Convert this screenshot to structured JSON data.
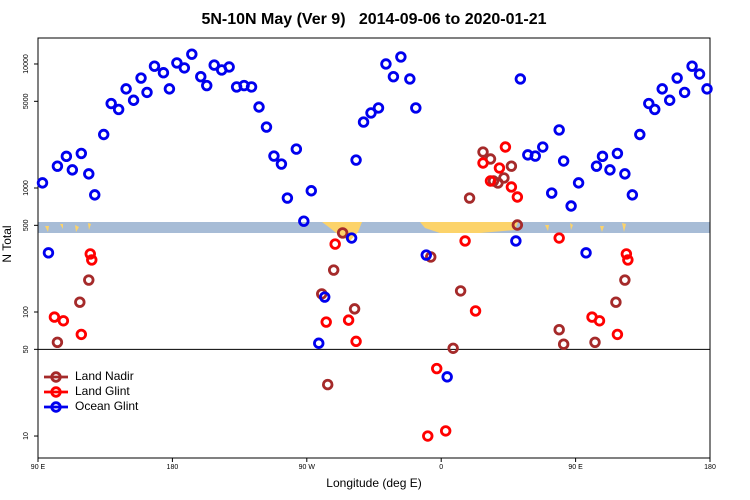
{
  "chart_data": {
    "type": "scatter",
    "title": "5N-10N May (Ver 9)   2014-09-06 to 2020-01-21",
    "x_label": "Longitude (deg E)",
    "y_label": "N Total",
    "xlim": [
      90,
      540
    ],
    "xticks": [
      {
        "value": 90,
        "label": "90 E"
      },
      {
        "value": 180,
        "label": "180"
      },
      {
        "value": 270,
        "label": "90 W"
      },
      {
        "value": 360,
        "label": "0"
      },
      {
        "value": 450,
        "label": "90 E"
      },
      {
        "value": 540,
        "label": "180"
      }
    ],
    "ylim": [
      6.65,
      16200
    ],
    "yticks": [
      10,
      50,
      100,
      500,
      1000,
      5000,
      10000
    ],
    "y_log": true,
    "reference_line": 50,
    "legend": "bottom-left",
    "series": [
      {
        "name": "Land Nadir",
        "color": "#a52a2a",
        "x": [
          103,
          118,
          124,
          280,
          288,
          294,
          302,
          284,
          353,
          368,
          373,
          379,
          388,
          393,
          395,
          398,
          402,
          407,
          411,
          439,
          442,
          463,
          477,
          483
        ],
        "values": [
          57,
          120,
          181,
          140,
          218,
          434,
          106,
          26,
          278,
          51,
          148,
          830,
          1950,
          1714,
          1139,
          1098,
          1205,
          1500,
          503,
          72,
          55,
          57,
          120,
          181
        ]
      },
      {
        "name": "Land Glint",
        "color": "#ff0000",
        "x": [
          101,
          107,
          119,
          125,
          126,
          289,
          283,
          298,
          303,
          351,
          357,
          363,
          376,
          383,
          388,
          393,
          399,
          403,
          407,
          411,
          439,
          461,
          466,
          478,
          484,
          485
        ],
        "values": [
          91,
          85,
          66,
          294,
          263,
          353,
          83,
          86,
          58,
          10,
          35,
          11,
          374,
          102,
          1591,
          1139,
          1449,
          2141,
          1019,
          846,
          395,
          91,
          85,
          66,
          294,
          263
        ]
      },
      {
        "name": "Ocean Glint",
        "color": "#0000ee",
        "x": [
          93,
          97,
          103,
          109,
          113,
          119,
          124,
          128,
          134,
          139,
          144,
          149,
          154,
          159,
          163,
          168,
          174,
          178,
          183,
          188,
          193,
          199,
          203,
          208,
          213,
          218,
          223,
          228,
          233,
          238,
          243,
          248,
          253,
          257,
          263,
          268,
          273,
          278,
          282,
          300,
          303,
          308,
          313,
          318,
          323,
          328,
          333,
          339,
          343,
          350,
          364,
          410,
          413,
          418,
          423,
          428,
          434,
          439,
          442,
          447,
          452,
          457,
          464,
          468,
          473,
          478,
          483,
          488,
          493,
          499,
          503,
          508,
          513,
          518,
          523,
          528,
          533,
          538
        ],
        "values": [
          1100,
          300,
          1500,
          1800,
          1400,
          1900,
          1300,
          880,
          2700,
          4800,
          4300,
          6300,
          5100,
          7700,
          5900,
          9600,
          8500,
          6300,
          10200,
          9300,
          12000,
          7900,
          6700,
          9800,
          8950,
          9460,
          6530,
          6700,
          6530,
          4500,
          3100,
          1810,
          1560,
          830,
          2060,
          540,
          950,
          56,
          132,
          395,
          1680,
          3400,
          4030,
          4420,
          10000,
          7900,
          11400,
          7570,
          4420,
          288,
          30,
          374,
          7570,
          1850,
          1810,
          2140,
          910,
          2940,
          1650,
          716,
          1100,
          300,
          1500,
          1800,
          1400,
          1900,
          1300,
          880,
          2700,
          4800,
          4300,
          6300,
          5100,
          7700,
          5900,
          9600,
          8300,
          6300
        ]
      }
    ]
  }
}
